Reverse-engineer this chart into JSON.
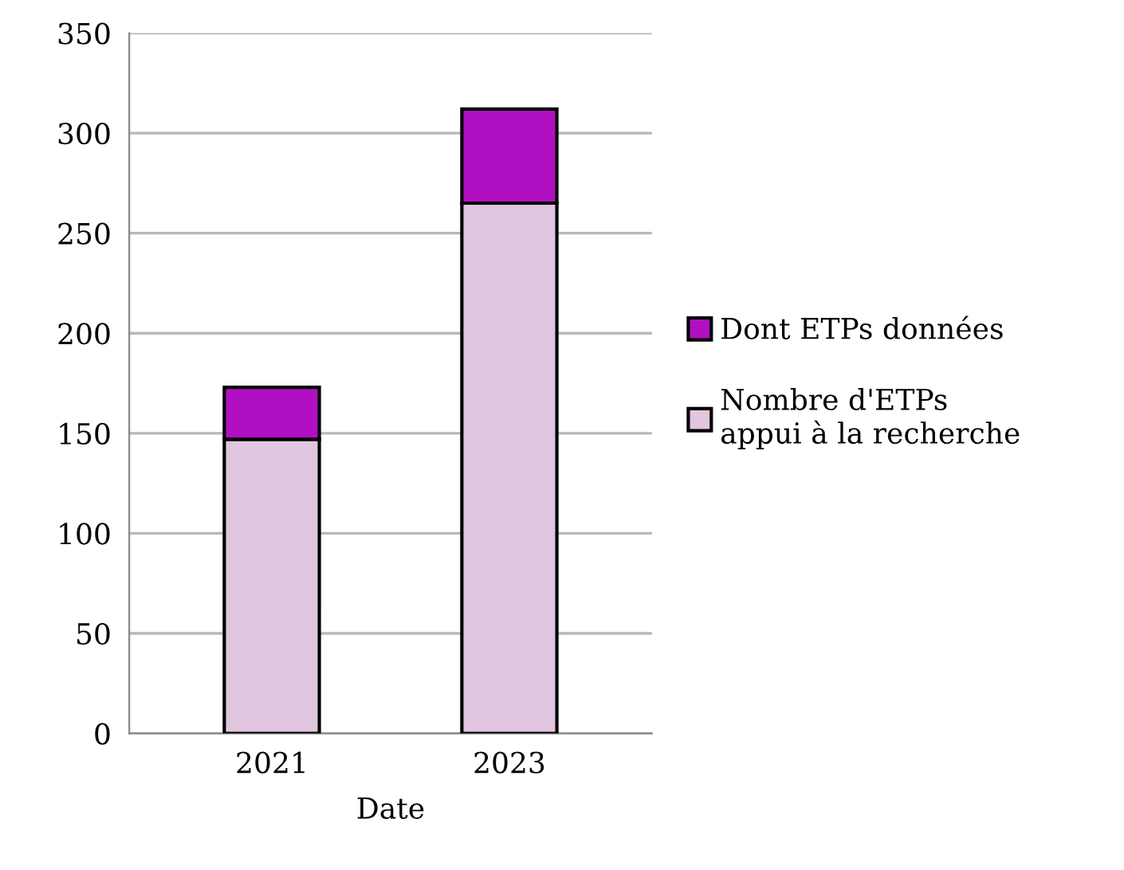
{
  "chart_data": {
    "type": "bar",
    "xlabel": "Date",
    "categories": [
      "2021",
      "2023"
    ],
    "stacked": true,
    "series": [
      {
        "name": "Nombre d'ETPs\nappui à la recherche",
        "color": "#e0c6df",
        "values": [
          147,
          265
        ]
      },
      {
        "name": "Dont ETPs données",
        "color": "#b10fc2",
        "values": [
          26,
          47
        ]
      }
    ],
    "ylim": [
      0,
      350
    ],
    "yticks": [
      0,
      50,
      100,
      150,
      200,
      250,
      300,
      350
    ],
    "grid": "y",
    "legend": "right"
  }
}
